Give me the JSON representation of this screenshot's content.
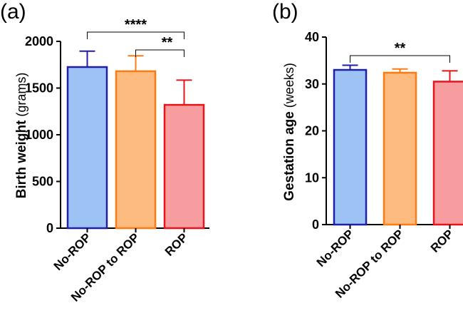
{
  "chart_data": [
    {
      "type": "bar",
      "panel": "(a)",
      "ylabel_main": "Birth weight",
      "ylabel_unit": "(grams)",
      "categories": [
        "No-ROP",
        "No-ROP to ROP",
        "ROP"
      ],
      "values": [
        1725,
        1680,
        1320
      ],
      "errors": [
        170,
        165,
        265
      ],
      "ylim": [
        0,
        2000
      ],
      "yticks": [
        "0",
        "500",
        "1000",
        "1500",
        "2000"
      ],
      "significance": [
        {
          "from": 0,
          "to": 2,
          "label": "****"
        },
        {
          "from": 1,
          "to": 2,
          "label": "**"
        }
      ]
    },
    {
      "type": "bar",
      "panel": "(b)",
      "ylabel_main": "Gestation age",
      "ylabel_unit": "(weeks)",
      "categories": [
        "No-ROP",
        "No-ROP to ROP",
        "ROP"
      ],
      "values": [
        33,
        32.4,
        30.5
      ],
      "errors": [
        1.0,
        0.8,
        2.3
      ],
      "ylim": [
        0,
        40
      ],
      "yticks": [
        "0",
        "10",
        "20",
        "30",
        "40"
      ],
      "significance": [
        {
          "from": 0,
          "to": 2,
          "label": "**"
        }
      ]
    }
  ],
  "colors": {
    "fills": [
      "#9dc3f5",
      "#fdbb7f",
      "#f89d9f"
    ],
    "strokes": [
      "#1f1fa8",
      "#ff7a10",
      "#e8141b"
    ]
  }
}
